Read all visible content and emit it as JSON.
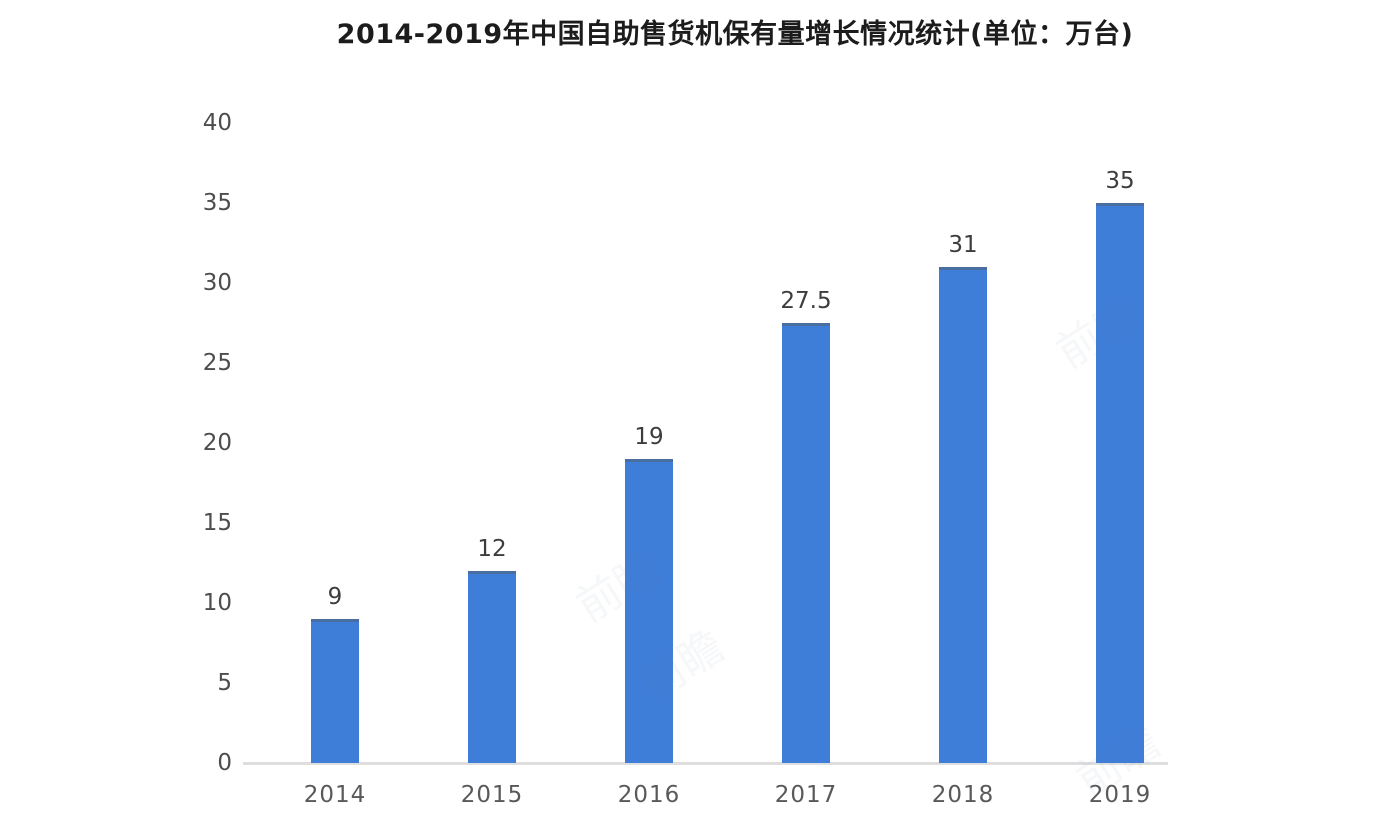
{
  "chart_data": {
    "type": "bar",
    "title": "2014-2019年中国自助售货机保有量增长情况统计(单位：万台)",
    "categories": [
      "2014",
      "2015",
      "2016",
      "2017",
      "2018",
      "2019"
    ],
    "values": [
      9,
      12,
      19,
      27.5,
      31,
      35
    ],
    "value_labels": [
      "9",
      "12",
      "19",
      "27.5",
      "31",
      "35"
    ],
    "xlabel": "",
    "ylabel": "",
    "ylim": [
      0,
      40
    ],
    "yticks": [
      0,
      5,
      10,
      15,
      20,
      25,
      30,
      35,
      40
    ],
    "grid": false,
    "legend": false,
    "bar_color": "#3e7dd8",
    "axis_line_color": "#dedede",
    "value_label_color": "#3d3d3d",
    "tick_label_color": "#4d4d4d",
    "x_label_color": "#595959",
    "title_color": "#1c1c1c",
    "background_color": "#ffffff"
  },
  "watermark": {
    "text": "前瞻"
  }
}
